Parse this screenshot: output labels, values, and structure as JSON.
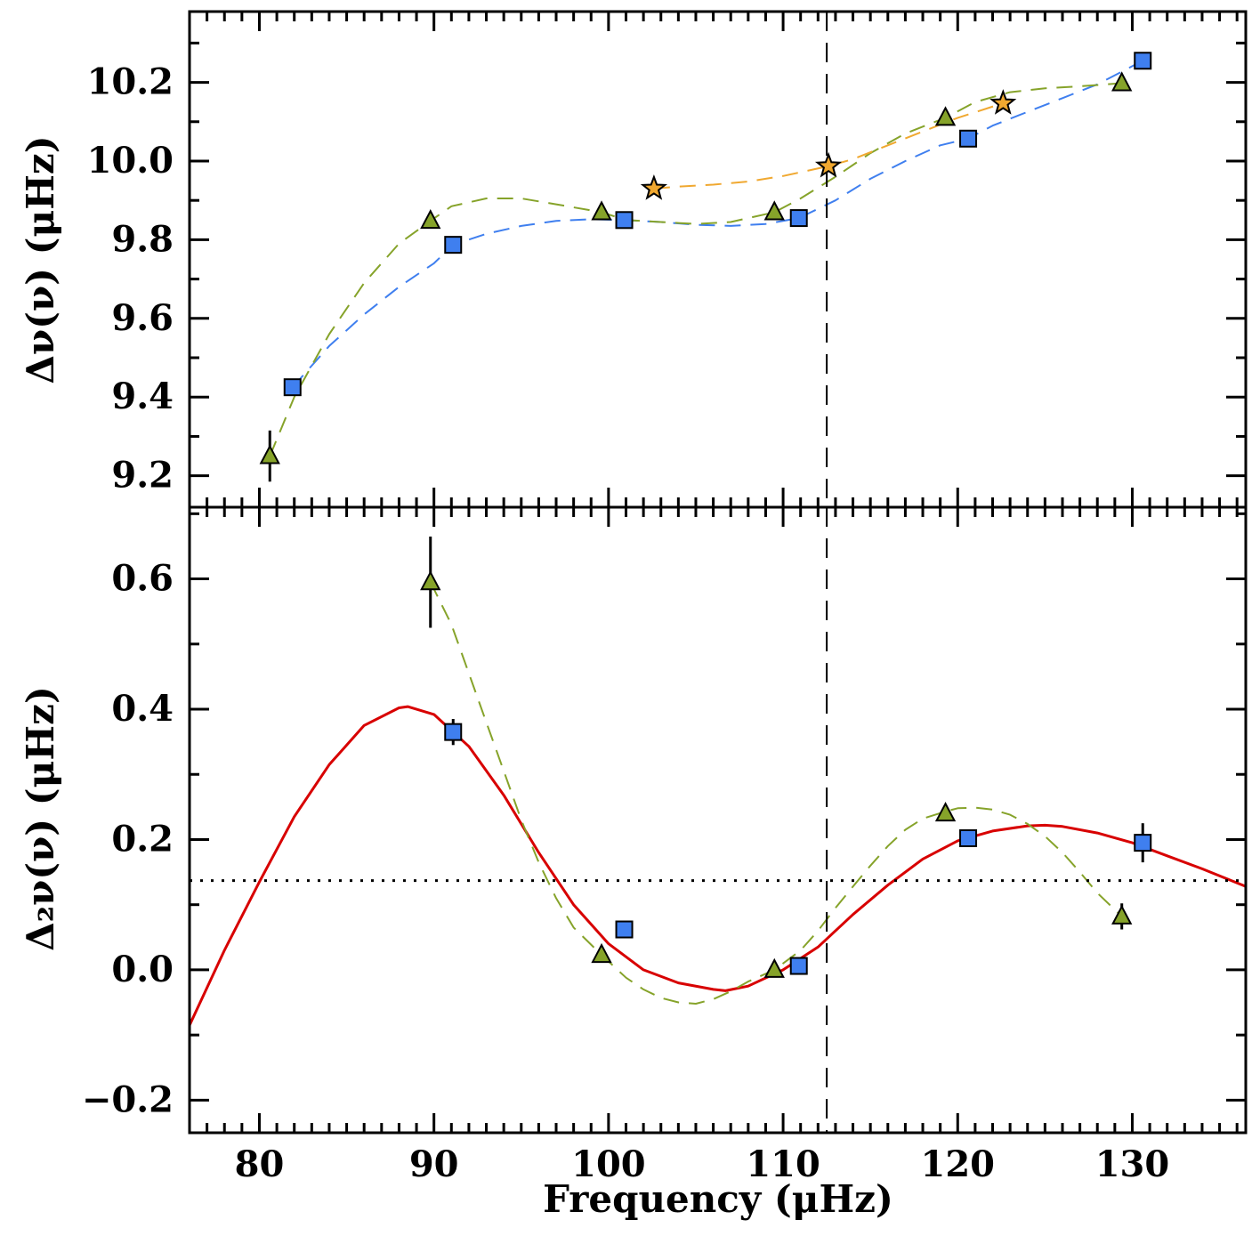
{
  "chart_data": [
    {
      "type": "scatter",
      "panel": "top",
      "ylabel": "Δν(ν) (μHz)",
      "xlabel": "",
      "xlim": [
        76,
        136.5
      ],
      "ylim": [
        9.12,
        10.38
      ],
      "yticks": [
        9.2,
        9.4,
        9.6,
        9.8,
        10.0,
        10.2
      ],
      "ytick_labels": [
        "9.2",
        "9.4",
        "9.6",
        "9.8",
        "10.0",
        "10.2"
      ],
      "vline_x": 112.5,
      "series": [
        {
          "marker": "square",
          "color": "#3f7fef",
          "x": [
            81.9,
            91.1,
            100.9,
            110.9,
            120.6,
            130.6
          ],
          "y": [
            9.425,
            9.787,
            9.85,
            9.855,
            10.057,
            10.255
          ],
          "err": [
            0,
            0,
            0,
            0,
            0,
            0
          ]
        },
        {
          "marker": "triangle",
          "color": "#86a32a",
          "x": [
            80.6,
            89.8,
            99.6,
            109.5,
            119.3,
            129.4
          ],
          "y": [
            9.25,
            9.848,
            9.87,
            9.87,
            10.11,
            10.198
          ],
          "err": [
            0.065,
            0,
            0,
            0,
            0,
            0
          ]
        },
        {
          "marker": "star",
          "color": "#f0a830",
          "x": [
            102.6,
            112.6,
            122.6
          ],
          "y": [
            9.93,
            9.987,
            10.147
          ],
          "err": [
            0,
            0,
            0
          ]
        }
      ],
      "curves": [
        {
          "style": "dashed",
          "color": "#3f7fef",
          "x": [
            81.9,
            84,
            86,
            88,
            90,
            91.1,
            93,
            95,
            97,
            99,
            100.9,
            103,
            105,
            107,
            109,
            110.9,
            113,
            115,
            117,
            119,
            120.6,
            122,
            124,
            126,
            128,
            130.6
          ],
          "y": [
            9.425,
            9.53,
            9.61,
            9.68,
            9.74,
            9.787,
            9.815,
            9.835,
            9.848,
            9.852,
            9.85,
            9.845,
            9.838,
            9.835,
            9.84,
            9.855,
            9.9,
            9.955,
            10.0,
            10.04,
            10.057,
            10.09,
            10.125,
            10.16,
            10.195,
            10.255
          ]
        },
        {
          "style": "dashed",
          "color": "#86a32a",
          "x": [
            80.6,
            82,
            84,
            86,
            88,
            89.8,
            91,
            93,
            95,
            97,
            99.6,
            101,
            103,
            105,
            107,
            109.5,
            111,
            113,
            115,
            117,
            119.3,
            121,
            123,
            125,
            127,
            129.4
          ],
          "y": [
            9.25,
            9.4,
            9.56,
            9.69,
            9.79,
            9.848,
            9.885,
            9.905,
            9.905,
            9.89,
            9.87,
            9.85,
            9.845,
            9.84,
            9.845,
            9.87,
            9.905,
            9.96,
            10.02,
            10.07,
            10.11,
            10.15,
            10.175,
            10.185,
            10.19,
            10.198
          ]
        },
        {
          "style": "dashed",
          "color": "#f0a830",
          "x": [
            102.6,
            104,
            106,
            108,
            110,
            112.6,
            114,
            116,
            118,
            120,
            122.6
          ],
          "y": [
            9.93,
            9.935,
            9.94,
            9.948,
            9.962,
            9.987,
            10.005,
            10.04,
            10.075,
            10.11,
            10.147
          ]
        }
      ]
    },
    {
      "type": "scatter",
      "panel": "bottom",
      "ylabel": "Δ₂ν(ν) (μHz)",
      "xlabel": "Frequency (μHz)",
      "xlim": [
        76,
        136.5
      ],
      "ylim": [
        -0.25,
        0.71
      ],
      "xticks": [
        80,
        90,
        100,
        110,
        120,
        130
      ],
      "xtick_labels": [
        "80",
        "90",
        "100",
        "110",
        "120",
        "130"
      ],
      "yticks": [
        -0.2,
        0.0,
        0.2,
        0.4,
        0.6
      ],
      "ytick_labels": [
        "−0.2",
        "0.0",
        "0.2",
        "0.4",
        "0.6"
      ],
      "vline_x": 112.5,
      "hline_y": 0.137,
      "series": [
        {
          "marker": "square",
          "color": "#3f7fef",
          "x": [
            91.1,
            100.9,
            110.9,
            120.6,
            130.6
          ],
          "y": [
            0.365,
            0.062,
            0.006,
            0.202,
            0.195
          ],
          "err": [
            0.02,
            0,
            0,
            0,
            0.03
          ]
        },
        {
          "marker": "triangle",
          "color": "#86a32a",
          "x": [
            89.8,
            99.6,
            109.5,
            119.3,
            129.4
          ],
          "y": [
            0.595,
            0.023,
            0.0,
            0.24,
            0.082
          ],
          "err": [
            0.07,
            0.01,
            0,
            0.01,
            0.02
          ]
        }
      ],
      "curves": [
        {
          "style": "solid",
          "color": "#d80000",
          "x": [
            76,
            78,
            80,
            82,
            84,
            86,
            88,
            88.5,
            90,
            92,
            94,
            96,
            98,
            100,
            102,
            104,
            106,
            106.7,
            108,
            110,
            112,
            114,
            116,
            118,
            120,
            122,
            124,
            125,
            126,
            128,
            130,
            132,
            134,
            136.5
          ],
          "y": [
            -0.085,
            0.03,
            0.135,
            0.235,
            0.315,
            0.375,
            0.402,
            0.404,
            0.392,
            0.343,
            0.268,
            0.18,
            0.1,
            0.04,
            0.0,
            -0.02,
            -0.03,
            -0.032,
            -0.025,
            0.0,
            0.035,
            0.085,
            0.13,
            0.17,
            0.198,
            0.213,
            0.221,
            0.222,
            0.22,
            0.21,
            0.195,
            0.175,
            0.155,
            0.128
          ]
        },
        {
          "style": "dashed",
          "color": "#86a32a",
          "x": [
            89.8,
            91,
            92,
            93,
            94,
            95,
            96,
            97,
            98,
            99.6,
            101,
            102,
            103,
            104,
            105,
            106,
            107,
            108,
            109.5,
            111,
            112,
            113,
            114,
            115,
            116,
            117,
            118,
            119.3,
            120,
            121,
            122,
            123,
            124,
            125,
            126,
            127,
            128,
            129.4
          ],
          "y": [
            0.595,
            0.53,
            0.455,
            0.38,
            0.305,
            0.23,
            0.165,
            0.11,
            0.065,
            0.023,
            -0.012,
            -0.03,
            -0.043,
            -0.05,
            -0.052,
            -0.045,
            -0.033,
            -0.018,
            0.0,
            0.03,
            0.06,
            0.095,
            0.128,
            0.16,
            0.19,
            0.215,
            0.232,
            0.243,
            0.248,
            0.249,
            0.246,
            0.238,
            0.224,
            0.205,
            0.18,
            0.15,
            0.118,
            0.082
          ]
        }
      ]
    }
  ]
}
